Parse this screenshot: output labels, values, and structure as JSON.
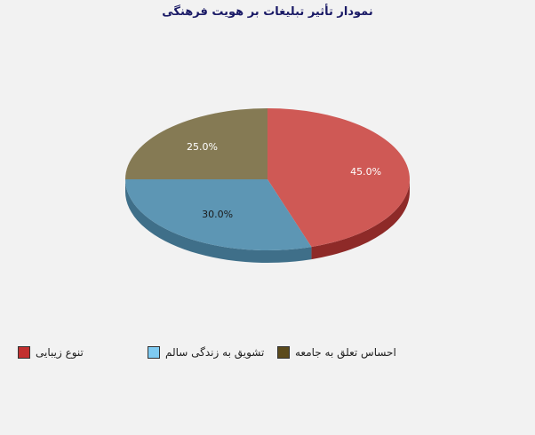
{
  "chart_data": {
    "type": "pie",
    "title": "نمودار تأثیر تبلیغات بر هویت فرهنگی",
    "slices": [
      {
        "name": "تنوع زیبایی",
        "value": 45.0,
        "label": "45.0%",
        "color": "#c2302f"
      },
      {
        "name": "تشویق به زندگی سالم",
        "value": 30.0,
        "label": "30.0%",
        "color": "#7fcbf2"
      },
      {
        "name": "احساس تعلق به جامعه",
        "value": 25.0,
        "label": "25.0%",
        "color": "#5b4a1c"
      }
    ],
    "legend": {
      "position": "bottom",
      "items": [
        {
          "label": "تنوع زیبایی",
          "color": "#c2302f"
        },
        {
          "label": "تشویق به زندگی سالم",
          "color": "#7fcbf2"
        },
        {
          "label": "احساس تعلق به جامعه",
          "color": "#5b4a1c"
        }
      ]
    }
  }
}
